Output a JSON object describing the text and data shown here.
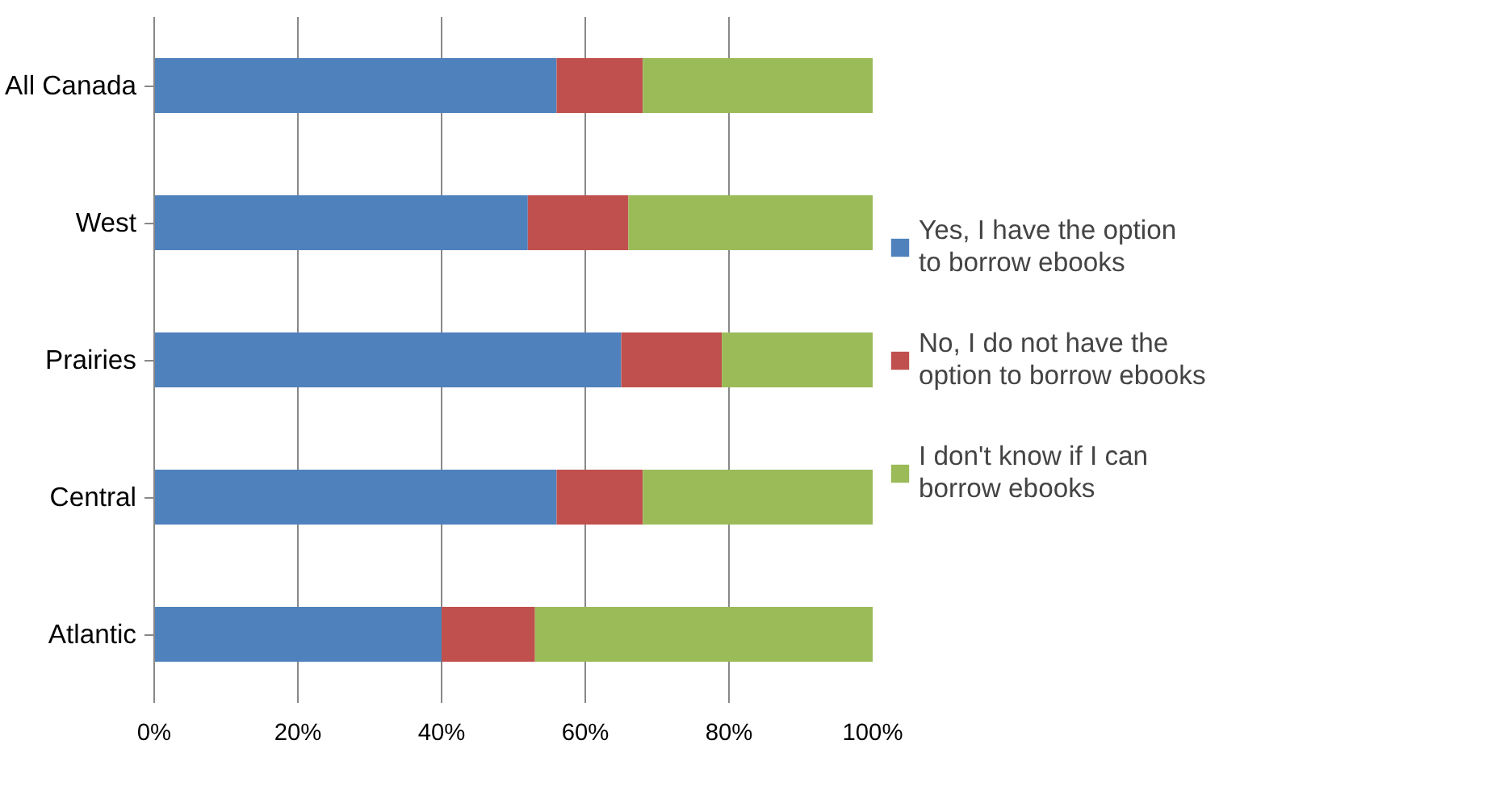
{
  "chart_data": {
    "type": "bar",
    "orientation": "horizontal",
    "stacked": true,
    "categories": [
      "All Canada",
      "West",
      "Prairies",
      "Central",
      "Atlantic"
    ],
    "series": [
      {
        "name": "Yes, I have the option to borrow ebooks",
        "color": "#4f81bd",
        "values": [
          56,
          52,
          65,
          56,
          40
        ]
      },
      {
        "name": "No, I do not have the option to borrow ebooks",
        "color": "#c0504d",
        "values": [
          12,
          14,
          14,
          12,
          13
        ]
      },
      {
        "name": "I don't know if I can borrow ebooks",
        "color": "#9bbb59",
        "values": [
          32,
          34,
          21,
          32,
          47
        ]
      }
    ],
    "xlim": [
      0,
      100
    ],
    "xticks": [
      {
        "value": 0,
        "label": "0%"
      },
      {
        "value": 20,
        "label": "20%"
      },
      {
        "value": 40,
        "label": "40%"
      },
      {
        "value": 60,
        "label": "60%"
      },
      {
        "value": 80,
        "label": "80%"
      },
      {
        "value": 100,
        "label": "100%"
      }
    ],
    "grid": "x",
    "legend": "right"
  }
}
